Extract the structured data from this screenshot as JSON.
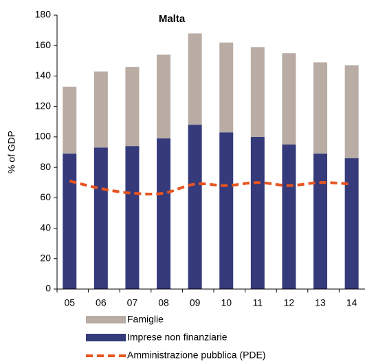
{
  "chart_data": {
    "type": "bar",
    "title": "Malta",
    "y_label": "% of GDP",
    "categories": [
      "05",
      "06",
      "07",
      "08",
      "09",
      "10",
      "11",
      "12",
      "13",
      "14"
    ],
    "series": [
      {
        "name": "Famiglie",
        "color": "#b8aca4",
        "stack": true,
        "values": [
          44,
          50,
          52,
          55,
          60,
          59,
          59,
          60,
          60,
          61
        ]
      },
      {
        "name": "Imprese non finanziarie",
        "color": "#353a7b",
        "stack": true,
        "values": [
          89,
          93,
          94,
          99,
          108,
          103,
          100,
          95,
          89,
          86
        ]
      },
      {
        "name": "Amministrazione pubblica (PDE)",
        "color": "#e8541e",
        "kind": "line",
        "dashed": true,
        "values": [
          71,
          66,
          63,
          63,
          69,
          68,
          70,
          68,
          70,
          69
        ]
      }
    ],
    "ylim": [
      0,
      180
    ],
    "yticks": [
      0,
      20,
      40,
      60,
      80,
      100,
      120,
      140,
      160,
      180
    ]
  }
}
